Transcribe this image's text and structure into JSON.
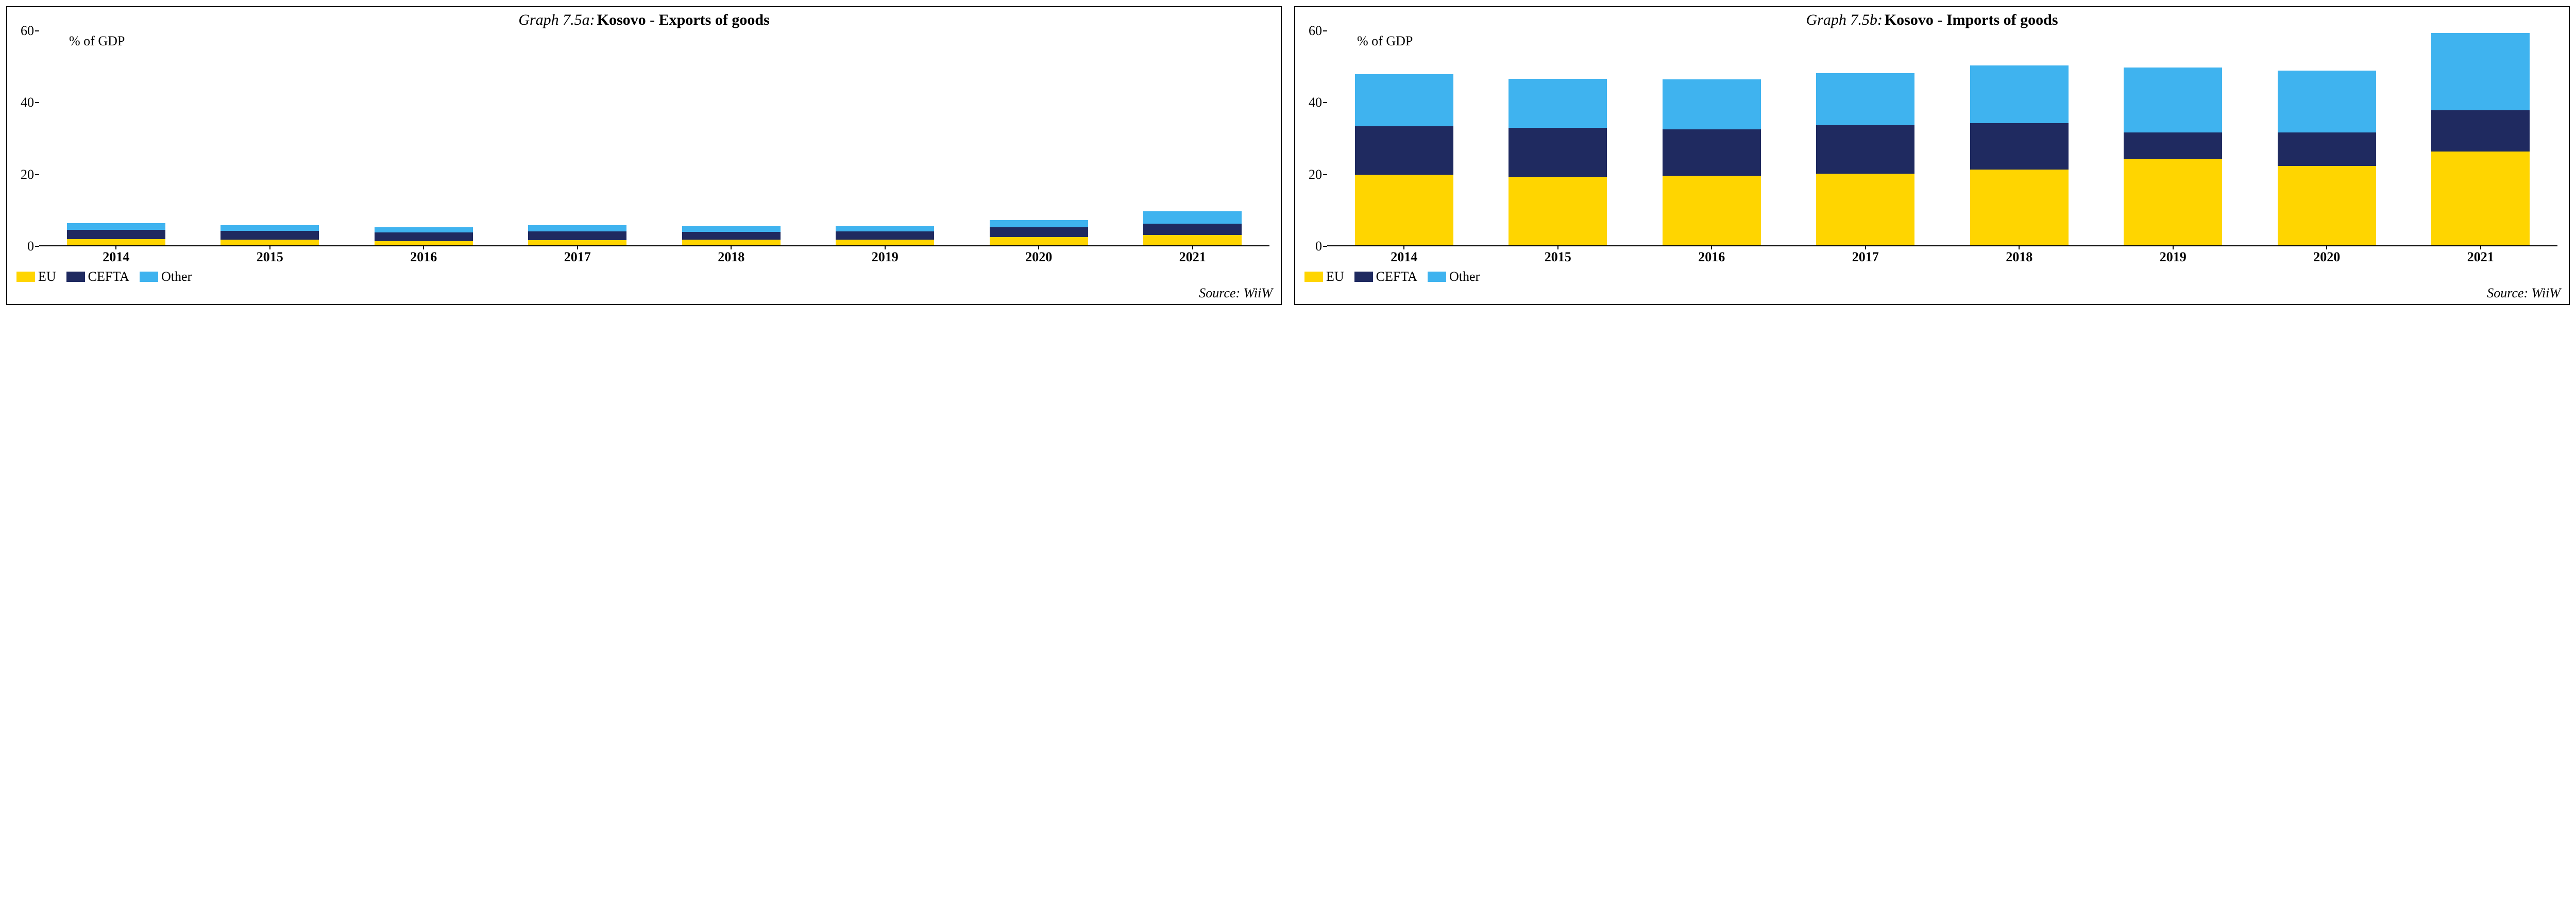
{
  "layout": {
    "panel_border_color": "#000000",
    "background_color": "#ffffff",
    "font_family": "Times New Roman",
    "title_fontsize_pt": 30,
    "axis_label_fontsize_pt": 26,
    "tick_fontsize_pt": 26,
    "xlabel_fontsize_pt": 26,
    "legend_fontsize_pt": 26,
    "source_fontsize_pt": 26
  },
  "series_meta": {
    "order_bottom_to_top": [
      "eu",
      "cefta",
      "other"
    ],
    "colors": {
      "eu": "#ffd500",
      "cefta": "#1f2a60",
      "other": "#3fb3ef"
    },
    "labels": {
      "eu": "EU",
      "cefta": "CEFTA",
      "other": "Other"
    }
  },
  "panels": {
    "exports": {
      "title_prefix": "Graph 7.5a:",
      "title_main": "Kosovo - Exports of goods",
      "y_axis_note": "% of GDP",
      "ylim": [
        0,
        60
      ],
      "yticks": [
        0,
        20,
        40,
        60
      ],
      "grid": false,
      "source": "Source: WiiW",
      "categories": [
        "2014",
        "2015",
        "2016",
        "2017",
        "2018",
        "2019",
        "2020",
        "2021"
      ],
      "data": {
        "eu": [
          1.8,
          1.6,
          1.2,
          1.4,
          1.6,
          1.6,
          2.3,
          2.9
        ],
        "cefta": [
          2.6,
          2.5,
          2.4,
          2.5,
          2.2,
          2.3,
          2.8,
          3.1
        ],
        "other": [
          1.8,
          1.6,
          1.5,
          1.8,
          1.5,
          1.4,
          1.9,
          3.5
        ]
      }
    },
    "imports": {
      "title_prefix": "Graph 7.5b:",
      "title_main": "Kosovo - Imports of goods",
      "y_axis_note": "% of GDP",
      "ylim": [
        0,
        60
      ],
      "yticks": [
        0,
        20,
        40,
        60
      ],
      "grid": false,
      "source": "Source: WiiW",
      "categories": [
        "2014",
        "2015",
        "2016",
        "2017",
        "2018",
        "2019",
        "2020",
        "2021"
      ],
      "data": {
        "eu": [
          19.8,
          19.2,
          19.5,
          20.0,
          21.2,
          24.1,
          22.2,
          26.2
        ],
        "cefta": [
          13.5,
          13.7,
          12.9,
          13.6,
          13.0,
          7.5,
          9.4,
          11.6
        ],
        "other": [
          14.6,
          13.7,
          14.0,
          14.6,
          16.2,
          18.2,
          17.3,
          21.6
        ]
      }
    }
  }
}
